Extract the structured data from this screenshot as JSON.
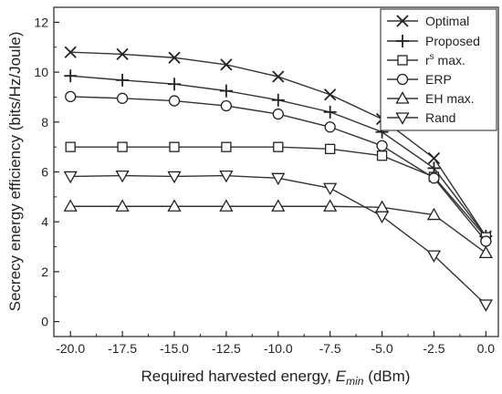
{
  "chart_data": {
    "type": "line",
    "title": "",
    "xlabel": "Required harvested energy, ",
    "xlabel_var": "E",
    "xlabel_sub": "min",
    "xlabel_unit": " (dBm)",
    "ylabel": "Secrecy energy efficiency (bits/Hz/Joule)",
    "xlim": [
      -20.8,
      0.6
    ],
    "ylim": [
      -0.6,
      12.6
    ],
    "x": [
      -20.0,
      -17.5,
      -15.0,
      -12.5,
      -10.0,
      -7.5,
      -5.0,
      -2.5,
      0.0
    ],
    "x_ticks": [
      "-20.0",
      "-17.5",
      "-15.0",
      "-12.5",
      "-10.0",
      "-7.5",
      "-5.0",
      "-2.5",
      "0.0"
    ],
    "y_ticks": [
      "0",
      "2",
      "4",
      "6",
      "8",
      "10",
      "12"
    ],
    "y_tick_values": [
      0,
      2,
      4,
      6,
      8,
      10,
      12
    ],
    "legend_position": "top-right",
    "grid": false,
    "series": [
      {
        "name": "Optimal",
        "marker": "x",
        "values": [
          10.8,
          10.72,
          10.58,
          10.3,
          9.82,
          9.1,
          8.12,
          6.55,
          3.42
        ]
      },
      {
        "name": "Proposed",
        "marker": "plus",
        "values": [
          9.85,
          9.68,
          9.52,
          9.25,
          8.88,
          8.4,
          7.6,
          6.15,
          3.42
        ]
      },
      {
        "name": "r",
        "name_sup": "s",
        "name_rest": " max.",
        "marker": "square",
        "values": [
          7.0,
          7.0,
          7.0,
          7.0,
          7.0,
          6.92,
          6.65,
          5.8,
          3.38
        ]
      },
      {
        "name": "ERP",
        "marker": "circle",
        "values": [
          9.02,
          8.95,
          8.85,
          8.65,
          8.32,
          7.8,
          7.05,
          5.75,
          3.22
        ]
      },
      {
        "name": "EH max.",
        "marker": "triangle-up",
        "values": [
          4.62,
          4.62,
          4.62,
          4.62,
          4.62,
          4.62,
          4.58,
          4.28,
          2.75
        ]
      },
      {
        "name": "Rand",
        "marker": "triangle-down",
        "values": [
          5.82,
          5.85,
          5.82,
          5.85,
          5.75,
          5.35,
          4.22,
          2.65,
          0.68
        ]
      }
    ]
  }
}
